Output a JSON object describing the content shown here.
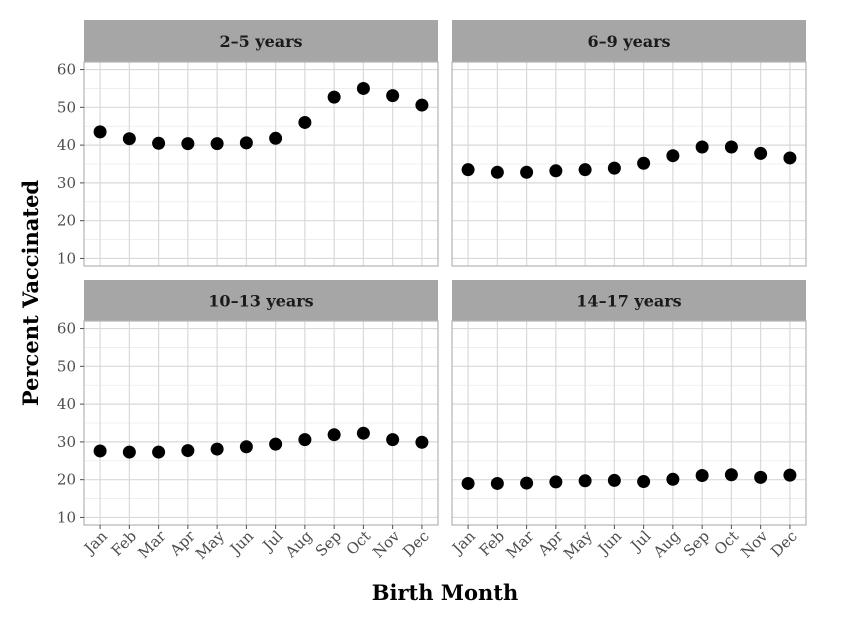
{
  "chart_data": {
    "type": "scatter",
    "xlabel": "Birth Month",
    "ylabel": "Percent Vaccinated",
    "categories": [
      "Jan",
      "Feb",
      "Mar",
      "Apr",
      "May",
      "Jun",
      "Jul",
      "Aug",
      "Sep",
      "Oct",
      "Nov",
      "Dec"
    ],
    "ylim": [
      8,
      62
    ],
    "yticks": [
      10,
      20,
      30,
      40,
      50,
      60
    ],
    "grid": true,
    "colors": {
      "strip": "#a6a6a6",
      "panel_border": "#b3b3b3",
      "grid_major": "#d9d9d9",
      "grid_minor": "#ececec",
      "point": "#000000"
    },
    "panels": [
      {
        "title": "2–5 years",
        "values": [
          43.5,
          41.7,
          40.5,
          40.4,
          40.4,
          40.6,
          41.8,
          46.0,
          52.7,
          55.0,
          53.1,
          50.6
        ]
      },
      {
        "title": "6–9 years",
        "values": [
          33.5,
          32.8,
          32.8,
          33.2,
          33.5,
          33.9,
          35.2,
          37.2,
          39.5,
          39.5,
          37.8,
          36.6
        ]
      },
      {
        "title": "10–13 years",
        "values": [
          27.6,
          27.3,
          27.3,
          27.7,
          28.1,
          28.7,
          29.4,
          30.6,
          31.9,
          32.3,
          30.6,
          29.9
        ]
      },
      {
        "title": "14–17 years",
        "values": [
          19.0,
          19.0,
          19.1,
          19.4,
          19.7,
          19.8,
          19.5,
          20.1,
          21.1,
          21.3,
          20.6,
          21.2
        ]
      }
    ]
  }
}
